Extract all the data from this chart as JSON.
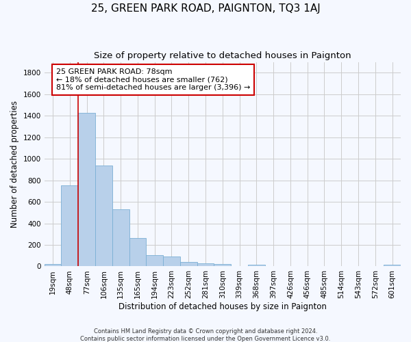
{
  "title": "25, GREEN PARK ROAD, PAIGNTON, TQ3 1AJ",
  "subtitle": "Size of property relative to detached houses in Paignton",
  "xlabel": "Distribution of detached houses by size in Paignton",
  "ylabel": "Number of detached properties",
  "footer1": "Contains HM Land Registry data © Crown copyright and database right 2024.",
  "footer2": "Contains public sector information licensed under the Open Government Licence v3.0.",
  "categories": [
    "19sqm",
    "48sqm",
    "77sqm",
    "106sqm",
    "135sqm",
    "165sqm",
    "194sqm",
    "223sqm",
    "252sqm",
    "281sqm",
    "310sqm",
    "339sqm",
    "368sqm",
    "397sqm",
    "426sqm",
    "456sqm",
    "485sqm",
    "514sqm",
    "543sqm",
    "572sqm",
    "601sqm"
  ],
  "values": [
    25,
    750,
    1425,
    940,
    530,
    265,
    105,
    95,
    40,
    30,
    25,
    0,
    15,
    5,
    5,
    5,
    0,
    0,
    0,
    0,
    15
  ],
  "bar_color": "#b8d0ea",
  "bar_edge_color": "#7aafd4",
  "bar_linewidth": 0.6,
  "vline_x_index": 2,
  "vline_color": "#cc0000",
  "annotation_line1": "25 GREEN PARK ROAD: 78sqm",
  "annotation_line2": "← 18% of detached houses are smaller (762)",
  "annotation_line3": "81% of semi-detached houses are larger (3,396) →",
  "annotation_box_color": "#cc0000",
  "ylim": [
    0,
    1900
  ],
  "yticks": [
    0,
    200,
    400,
    600,
    800,
    1000,
    1200,
    1400,
    1600,
    1800
  ],
  "grid_color": "#cccccc",
  "bg_color": "#f5f8ff",
  "plot_bg_color": "#f5f8ff",
  "title_fontsize": 11,
  "subtitle_fontsize": 9.5,
  "label_fontsize": 8.5,
  "tick_fontsize": 7.5,
  "annotation_fontsize": 8,
  "footer_fontsize": 6
}
